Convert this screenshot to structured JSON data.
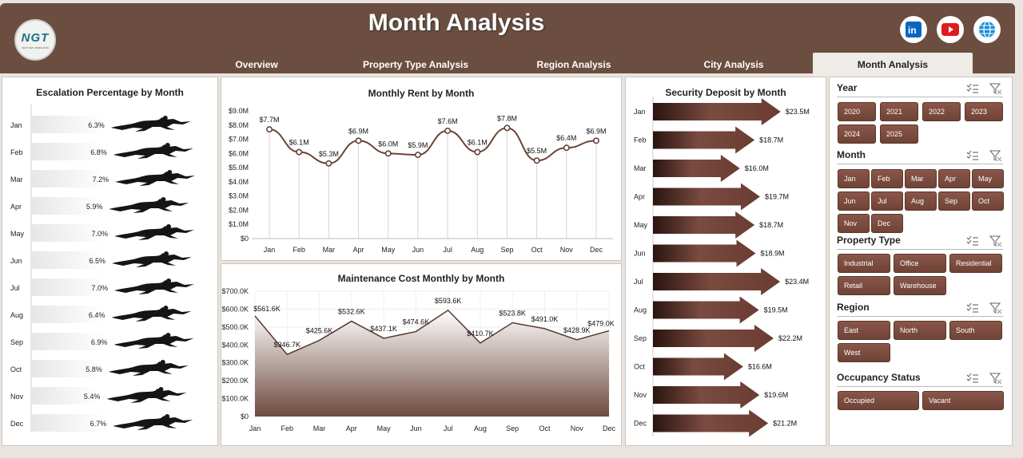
{
  "header": {
    "title": "Month Analysis",
    "logo_text": "NGT",
    "logo_sub": "NEXT GEN TEMPLATES"
  },
  "tabs": [
    "Overview",
    "Property Type Analysis",
    "Region Analysis",
    "City Analysis",
    "Month Analysis"
  ],
  "active_tab": "Month Analysis",
  "social": [
    "linkedin-icon",
    "youtube-icon",
    "globe-icon"
  ],
  "months": [
    "Jan",
    "Feb",
    "Mar",
    "Apr",
    "May",
    "Jun",
    "Jul",
    "Aug",
    "Sep",
    "Oct",
    "Nov",
    "Dec"
  ],
  "chart_data": [
    {
      "type": "bar",
      "title": "Escalation Percentage by Month",
      "categories": [
        "Jan",
        "Feb",
        "Mar",
        "Apr",
        "May",
        "Jun",
        "Jul",
        "Aug",
        "Sep",
        "Oct",
        "Nov",
        "Dec"
      ],
      "values": [
        6.3,
        6.8,
        7.2,
        5.9,
        7.0,
        6.5,
        7.0,
        6.4,
        6.9,
        5.8,
        5.4,
        6.7
      ],
      "labels": [
        "6.3%",
        "6.8%",
        "7.2%",
        "5.9%",
        "7.0%",
        "6.5%",
        "7.0%",
        "6.4%",
        "6.9%",
        "5.8%",
        "5.4%",
        "6.7%"
      ],
      "unit": "%"
    },
    {
      "type": "line",
      "title": "Monthly Rent by Month",
      "categories": [
        "Jan",
        "Feb",
        "Mar",
        "Apr",
        "May",
        "Jun",
        "Jul",
        "Aug",
        "Sep",
        "Oct",
        "Nov",
        "Dec"
      ],
      "values": [
        7.7,
        6.1,
        5.3,
        6.9,
        6.0,
        5.9,
        7.6,
        6.1,
        7.8,
        5.5,
        6.4,
        6.9
      ],
      "labels": [
        "$7.7M",
        "$6.1M",
        "$5.3M",
        "$6.9M",
        "$6.0M",
        "$5.9M",
        "$7.6M",
        "$6.1M",
        "$7.8M",
        "$5.5M",
        "$6.4M",
        "$6.9M"
      ],
      "yticks": [
        "$0",
        "$1.0M",
        "$2.0M",
        "$3.0M",
        "$4.0M",
        "$5.0M",
        "$6.0M",
        "$7.0M",
        "$8.0M",
        "$9.0M"
      ],
      "ylim": [
        0,
        9
      ]
    },
    {
      "type": "area",
      "title": "Maintenance Cost Monthly by Month",
      "categories": [
        "Jan",
        "Feb",
        "Mar",
        "Apr",
        "May",
        "Jun",
        "Jul",
        "Aug",
        "Sep",
        "Oct",
        "Nov",
        "Dec"
      ],
      "values": [
        561.6,
        346.7,
        425.6,
        532.6,
        437.1,
        474.6,
        593.6,
        410.7,
        523.8,
        491.0,
        428.9,
        479.0
      ],
      "labels": [
        "$561.6K",
        "$346.7K",
        "$425.6K",
        "$532.6K",
        "$437.1K",
        "$474.6K",
        "$593.6K",
        "$410.7K",
        "$523.8K",
        "$491.0K",
        "$428.9K",
        "$479.0K"
      ],
      "yticks": [
        "$0",
        "$100.0K",
        "$200.0K",
        "$300.0K",
        "$400.0K",
        "$500.0K",
        "$600.0K",
        "$700.0K"
      ],
      "ylim": [
        0,
        700
      ]
    },
    {
      "type": "bar",
      "title": "Security Deposit by Month",
      "categories": [
        "Jan",
        "Feb",
        "Mar",
        "Apr",
        "May",
        "Jun",
        "Jul",
        "Aug",
        "Sep",
        "Oct",
        "Nov",
        "Dec"
      ],
      "values": [
        23.5,
        18.7,
        16.0,
        19.7,
        18.7,
        18.9,
        23.4,
        19.5,
        22.2,
        16.6,
        19.6,
        21.2
      ],
      "labels": [
        "$23.5M",
        "$18.7M",
        "$16.0M",
        "$19.7M",
        "$18.7M",
        "$18.9M",
        "$23.4M",
        "$19.5M",
        "$22.2M",
        "$16.6M",
        "$19.6M",
        "$21.2M"
      ]
    }
  ],
  "slicers": {
    "year": {
      "title": "Year",
      "items": [
        "2020",
        "2021",
        "2022",
        "2023",
        "2024",
        "2025"
      ]
    },
    "month": {
      "title": "Month",
      "items": [
        "Jan",
        "Feb",
        "Mar",
        "Apr",
        "May",
        "Jun",
        "Jul",
        "Aug",
        "Sep",
        "Oct",
        "Nov",
        "Dec"
      ]
    },
    "property_type": {
      "title": "Property Type",
      "items": [
        "Industrial",
        "Office",
        "Residential",
        "Retail",
        "Warehouse"
      ]
    },
    "region": {
      "title": "Region",
      "items": [
        "East",
        "North",
        "South",
        "West"
      ]
    },
    "occupancy": {
      "title": "Occupancy Status",
      "items": [
        "Occupied",
        "Vacant"
      ]
    }
  },
  "colors": {
    "header": "#6b4e40",
    "accent": "#7a4a3c",
    "line": "#6a4438"
  }
}
